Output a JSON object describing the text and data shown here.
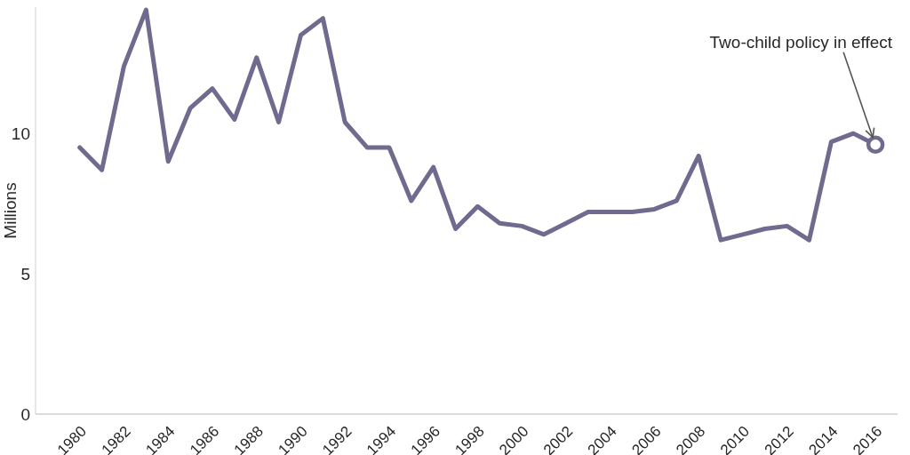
{
  "chart_data": {
    "type": "line",
    "ylabel": "Millions",
    "x": [
      1980,
      1981,
      1982,
      1983,
      1984,
      1985,
      1986,
      1987,
      1988,
      1989,
      1990,
      1991,
      1992,
      1993,
      1994,
      1995,
      1996,
      1997,
      1998,
      1999,
      2000,
      2001,
      2002,
      2003,
      2004,
      2005,
      2006,
      2007,
      2008,
      2009,
      2010,
      2011,
      2012,
      2013,
      2014,
      2015,
      2016
    ],
    "values": [
      9.5,
      8.7,
      12.4,
      14.4,
      9.0,
      10.9,
      11.6,
      10.5,
      12.7,
      10.4,
      13.5,
      14.1,
      10.4,
      9.5,
      9.5,
      7.6,
      8.8,
      6.6,
      7.4,
      6.8,
      6.7,
      6.4,
      6.8,
      7.2,
      7.2,
      7.2,
      7.3,
      7.6,
      9.2,
      6.2,
      6.4,
      6.6,
      6.7,
      6.2,
      9.7,
      10.0,
      9.6
    ],
    "color": "#6f6a8e",
    "xlim": [
      1978,
      2017
    ],
    "xticks": [
      1980,
      1982,
      1984,
      1986,
      1988,
      1990,
      1992,
      1994,
      1996,
      1998,
      2000,
      2002,
      2004,
      2006,
      2008,
      2010,
      2012,
      2014,
      2016
    ],
    "ylim": [
      0,
      14.5
    ],
    "yticks": [
      0,
      5,
      10
    ],
    "annotations": [
      {
        "text": "Two-child policy in effect",
        "x": 2016,
        "y": 9.6
      }
    ]
  }
}
